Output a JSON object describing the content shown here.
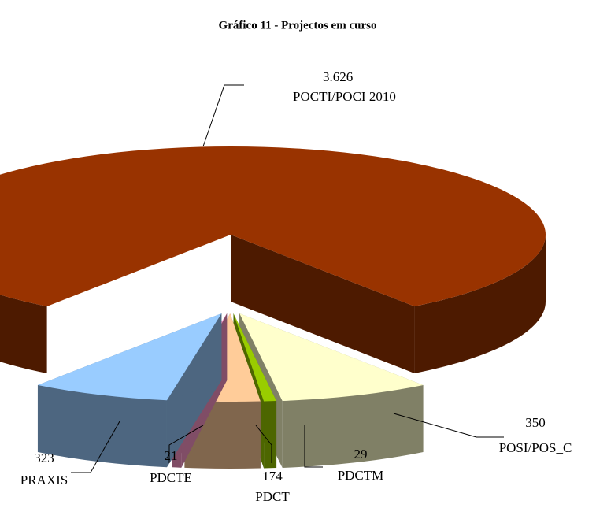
{
  "chart_data": {
    "type": "pie3d",
    "title": "Gráfico 11 - Projectos em curso",
    "categories": [
      "POCTI/POCI 2010",
      "POSI/POS_C",
      "PDCTM",
      "PDCT",
      "PDCTE",
      "PRAXIS"
    ],
    "values": [
      3626,
      350,
      29,
      174,
      21,
      323
    ],
    "value_labels": [
      "3.626",
      "350",
      "29",
      "174",
      "21",
      "323"
    ],
    "colors": [
      "#993300",
      "#ffffcc",
      "#99cc00",
      "#ffcc99",
      "#ff99cc",
      "#99ccff"
    ]
  }
}
